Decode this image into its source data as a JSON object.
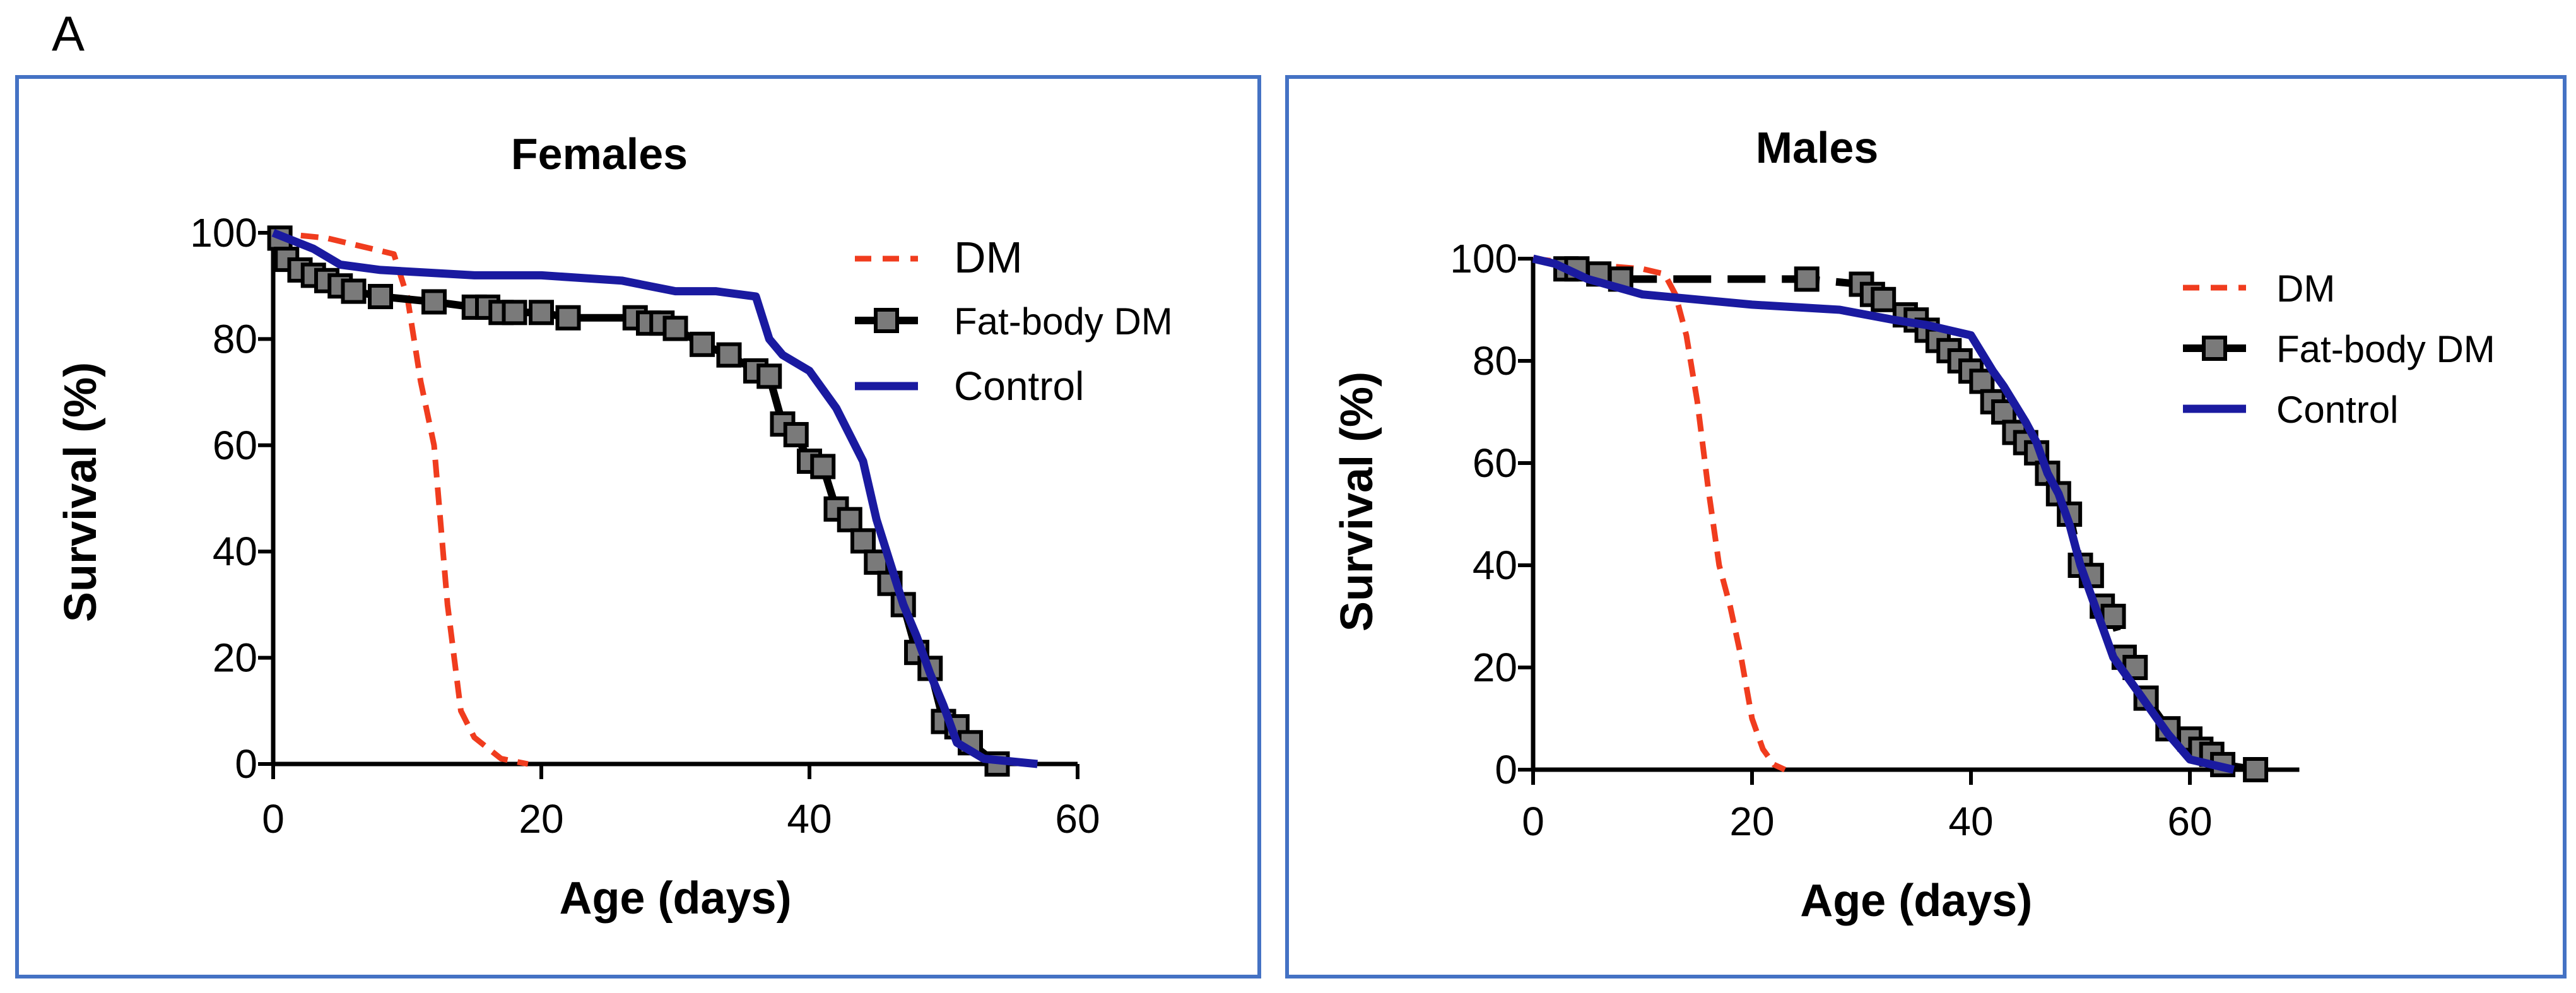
{
  "panel_label": "A",
  "colors": {
    "frame": "#4472c4",
    "dm": "#f03c1e",
    "fatbody": "#000000",
    "marker_fill": "#7a7a7a",
    "control": "#1a1aa0"
  },
  "chart_data": [
    {
      "type": "line",
      "title": "Females",
      "xlabel": "Age (days)",
      "ylabel": "Survival (%)",
      "xlim": [
        0,
        60
      ],
      "ylim": [
        0,
        100
      ],
      "xticks": [
        "0",
        "20",
        "40",
        "60"
      ],
      "yticks": [
        "0",
        "20",
        "40",
        "60",
        "80",
        "100"
      ],
      "legend_position": "top-right",
      "series": [
        {
          "name": "DM",
          "style": "dashed",
          "x": [
            0,
            4,
            9,
            10,
            11,
            12,
            13,
            14,
            15,
            16,
            17,
            18,
            19
          ],
          "y": [
            100,
            99,
            96,
            88,
            72,
            60,
            30,
            10,
            5,
            3,
            1,
            0.5,
            0
          ]
        },
        {
          "name": "Fat-body DM",
          "style": "solid-markers",
          "x": [
            0.5,
            1,
            2,
            3,
            4,
            5,
            6,
            8,
            12,
            15,
            16,
            17,
            18,
            20,
            22,
            27,
            28,
            29,
            30,
            32,
            34,
            36,
            37,
            38,
            39,
            40,
            41,
            42,
            43,
            44,
            45,
            46,
            47,
            48,
            49,
            50,
            51,
            52,
            54
          ],
          "y": [
            99,
            95,
            93,
            92,
            91,
            90,
            89,
            88,
            87,
            86,
            86,
            85,
            85,
            85,
            84,
            84,
            83,
            83,
            82,
            79,
            77,
            74,
            73,
            64,
            62,
            57,
            56,
            48,
            46,
            42,
            38,
            34,
            30,
            21,
            18,
            8,
            7,
            4,
            0
          ]
        },
        {
          "name": "Control",
          "style": "solid",
          "x": [
            0,
            1,
            3,
            5,
            8,
            15,
            20,
            26,
            30,
            33,
            36,
            37,
            38,
            40,
            42,
            44,
            45,
            46,
            47,
            48,
            49,
            50,
            51,
            53,
            57
          ],
          "y": [
            100,
            99,
            97,
            94,
            93,
            92,
            92,
            91,
            89,
            89,
            88,
            80,
            77,
            74,
            67,
            57,
            46,
            38,
            30,
            24,
            17,
            11,
            4,
            1,
            0
          ]
        }
      ]
    },
    {
      "type": "line",
      "title": "Males",
      "xlabel": "Age (days)",
      "ylabel": "Survival (%)",
      "xlim": [
        0,
        70
      ],
      "ylim": [
        0,
        100
      ],
      "xticks": [
        "0",
        "20",
        "40",
        "60"
      ],
      "yticks": [
        "0",
        "20",
        "40",
        "60",
        "80",
        "100"
      ],
      "legend_position": "top-right",
      "series": [
        {
          "name": "DM",
          "style": "dashed",
          "x": [
            0,
            4,
            10,
            12,
            13,
            14,
            15,
            16,
            17,
            18,
            19,
            20,
            21,
            22,
            23
          ],
          "y": [
            100,
            99,
            98,
            97,
            93,
            85,
            72,
            55,
            40,
            32,
            22,
            10,
            4,
            1,
            0
          ]
        },
        {
          "name": "Fat-body DM",
          "style": "dashed-markers",
          "x": [
            3,
            4,
            6,
            8,
            25,
            30,
            31,
            32,
            34,
            35,
            36,
            37,
            38,
            39,
            40,
            41,
            42,
            43,
            44,
            45,
            46,
            47,
            48,
            49,
            50,
            51,
            52,
            53,
            54,
            55,
            56,
            58,
            60,
            61,
            62,
            63,
            66
          ],
          "y": [
            98,
            98,
            97,
            96,
            96,
            95,
            93,
            92,
            89,
            88,
            86,
            84,
            82,
            80,
            78,
            76,
            72,
            70,
            66,
            64,
            62,
            58,
            54,
            50,
            40,
            38,
            32,
            30,
            22,
            20,
            14,
            8,
            6,
            4,
            3,
            1,
            0
          ]
        },
        {
          "name": "Control",
          "style": "solid",
          "x": [
            0,
            2,
            5,
            10,
            15,
            20,
            28,
            33,
            36,
            38,
            40,
            42,
            43,
            45,
            46,
            47,
            48,
            49,
            50,
            51,
            52,
            53,
            55,
            57,
            58,
            60,
            62,
            64
          ],
          "y": [
            100,
            99,
            96,
            93,
            92,
            91,
            90,
            88,
            87,
            86,
            85,
            78,
            75,
            68,
            64,
            58,
            54,
            48,
            40,
            34,
            28,
            22,
            16,
            10,
            7,
            2,
            1,
            0
          ]
        }
      ]
    }
  ]
}
